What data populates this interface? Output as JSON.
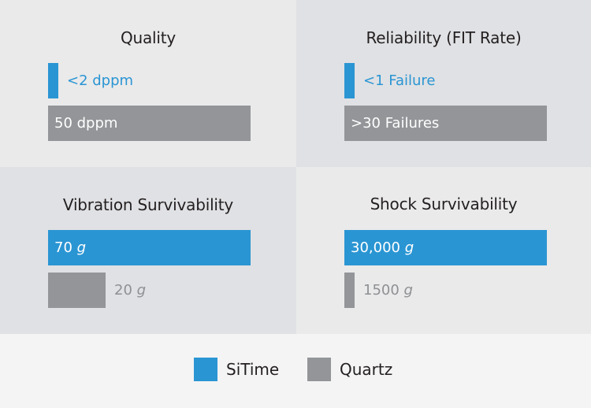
{
  "colors": {
    "sitime": "#2a95d3",
    "quartz": "#939598",
    "panel_light": "#eaeaea",
    "panel_dark": "#e0e1e4",
    "text_dark": "#231f20",
    "text_muted": "#8e9093",
    "text_on_bar": "#ffffff"
  },
  "legend": {
    "items": [
      {
        "label": "SiTime",
        "color": "#2a95d3"
      },
      {
        "label": "Quartz",
        "color": "#939598"
      }
    ]
  },
  "chart_data": [
    {
      "type": "bar",
      "title": "Quality",
      "series": [
        {
          "name": "SiTime",
          "value": 2,
          "label": "<2 dppm"
        },
        {
          "name": "Quartz",
          "value": 50,
          "label": "50 dppm"
        }
      ]
    },
    {
      "type": "bar",
      "title": "Reliability (FIT Rate)",
      "series": [
        {
          "name": "SiTime",
          "value": 1,
          "label": "<1 Failure"
        },
        {
          "name": "Quartz",
          "value": 30,
          "label": ">30 Failures"
        }
      ]
    },
    {
      "type": "bar",
      "title": "Vibration Survivability",
      "series": [
        {
          "name": "SiTime",
          "value": 70,
          "label": "70 g"
        },
        {
          "name": "Quartz",
          "value": 20,
          "label": "20 g"
        }
      ]
    },
    {
      "type": "bar",
      "title": "Shock Survivability",
      "series": [
        {
          "name": "SiTime",
          "value": 30000,
          "label": "30,000 g"
        },
        {
          "name": "Quartz",
          "value": 1500,
          "label": "1500 g"
        }
      ]
    }
  ]
}
